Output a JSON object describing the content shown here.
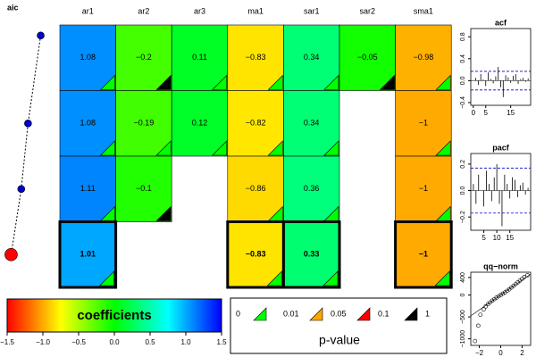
{
  "chart_data": {
    "type": "coefficient-grid",
    "columns": [
      "ar1",
      "ar2",
      "ar3",
      "ma1",
      "sar1",
      "sar2",
      "sma1"
    ],
    "rows": [
      {
        "values": [
          1.08,
          -0.2,
          0.11,
          -0.83,
          0.34,
          -0.05,
          -0.98
        ],
        "value_labels": [
          "1.08",
          "−0.2",
          "0.11",
          "−0.83",
          "0.34",
          "−0.05",
          "−0.98"
        ],
        "triangles": [
          "#00ff00",
          "#000000",
          "#00ff00",
          "#00ff00",
          "#00ff00",
          "#000000",
          "#00ff00"
        ]
      },
      {
        "values": [
          1.08,
          -0.19,
          0.12,
          -0.82,
          0.34,
          null,
          -1
        ],
        "value_labels": [
          "1.08",
          "−0.19",
          "0.12",
          "−0.82",
          "0.34",
          null,
          "−1"
        ],
        "triangles": [
          "#00ff00",
          "#00ff00",
          "#00ff00",
          "#00ff00",
          "#00ff00",
          null,
          "#00ff00"
        ]
      },
      {
        "values": [
          1.11,
          -0.1,
          null,
          -0.86,
          0.36,
          null,
          -1
        ],
        "value_labels": [
          "1.11",
          "−0.1",
          null,
          "−0.86",
          "0.36",
          null,
          "−1"
        ],
        "triangles": [
          "#00ff00",
          "#000000",
          null,
          "#00ff00",
          "#00ff00",
          null,
          "#00ff00"
        ]
      },
      {
        "values": [
          1.01,
          null,
          null,
          -0.83,
          0.33,
          null,
          -1
        ],
        "value_labels": [
          "1.01",
          null,
          null,
          "−0.83",
          "0.33",
          null,
          "−1"
        ],
        "triangles": [
          "#00ff00",
          null,
          null,
          "#00ff00",
          "#00ff00",
          null,
          "#00ff00"
        ]
      }
    ],
    "selected_row": 3,
    "aic": {
      "label": "aic",
      "values": [
        45,
        30,
        22,
        10
      ],
      "xlim": [
        0,
        55
      ],
      "color": "#0000cc",
      "selected_color": "#ff0000"
    },
    "colorbar": {
      "label": "coefficients",
      "lim": [
        -1.5,
        1.5
      ],
      "colors": [
        "#ff0000",
        "#ffff00",
        "#00ff00",
        "#00ffff",
        "#0000ff"
      ],
      "ticks": [
        {
          "value": -1.5,
          "label": "−1.5"
        },
        {
          "value": -1.0,
          "label": "−1.0"
        },
        {
          "value": -0.5,
          "label": "−0.5"
        },
        {
          "value": 0,
          "label": "0.0"
        },
        0.5,
        {
          "value": 1.0,
          "label": "1.0"
        },
        1.5
      ]
    },
    "pvalue_legend": {
      "title": "p-value",
      "breaks": [
        0,
        0.01,
        0.05,
        0.1,
        1
      ],
      "colors": [
        "#00ff00",
        "#ffa500",
        "#ff0000",
        "#000000"
      ]
    },
    "acf": {
      "title": "acf",
      "x": [
        1,
        2,
        3,
        4,
        5,
        6,
        7,
        8,
        9,
        10,
        11,
        12,
        13,
        14,
        15,
        16,
        17,
        18,
        19,
        20,
        21,
        22
      ],
      "values": [
        0.05,
        -0.08,
        0.12,
        0.02,
        -0.1,
        0.15,
        0.03,
        -0.05,
        0.08,
        0.25,
        -0.12,
        -0.3,
        0.1,
        0.06,
        -0.04,
        0.09,
        0.12,
        -0.06,
        0.03,
        0.05,
        -0.02,
        0.04
      ],
      "xlim": [
        -1,
        23
      ],
      "xticks": [
        0,
        5,
        15
      ],
      "ylim": [
        -0.45,
        0.95
      ],
      "yticks": [
        {
          "value": -0.4,
          "label": "−0.4"
        },
        {
          "value": 0,
          "label": "0.0"
        },
        0.4,
        0.8
      ],
      "band": 0.17
    },
    "pacf": {
      "title": "pacf",
      "x": [
        1,
        2,
        3,
        4,
        5,
        6,
        7,
        8,
        9,
        10,
        11,
        12,
        13,
        14,
        15,
        16,
        17,
        18,
        19,
        20,
        21,
        22
      ],
      "values": [
        0.05,
        -0.1,
        0.12,
        0.0,
        -0.12,
        0.15,
        0.05,
        -0.08,
        0.1,
        0.2,
        -0.1,
        -0.27,
        0.12,
        0.05,
        -0.06,
        0.1,
        0.08,
        -0.05,
        0.04,
        0.06,
        -0.03,
        0.02
      ],
      "xlim": [
        0,
        23
      ],
      "xticks": [
        5,
        10,
        15
      ],
      "ylim": [
        -0.3,
        0.28
      ],
      "yticks": [
        {
          "value": -0.2,
          "label": "−0.2"
        },
        {
          "value": 0,
          "label": "0.0"
        },
        0.2
      ],
      "band": 0.17
    },
    "qq": {
      "title": "qq−norm",
      "x": [
        -2.4,
        -2.1,
        -1.9,
        -1.6,
        -1.4,
        -1.2,
        -1.0,
        -0.8,
        -0.6,
        -0.4,
        -0.2,
        0,
        0.2,
        0.4,
        0.6,
        0.8,
        1.0,
        1.2,
        1.4,
        1.6,
        1.8,
        2.0,
        2.2,
        2.5
      ],
      "y": [
        -1050,
        -700,
        -450,
        -330,
        -260,
        -210,
        -170,
        -130,
        -95,
        -60,
        -30,
        0,
        30,
        60,
        95,
        130,
        170,
        210,
        250,
        290,
        330,
        370,
        410,
        450
      ],
      "xlim": [
        -2.8,
        2.8
      ],
      "xticks": [
        {
          "value": -2,
          "label": "−2"
        },
        0,
        2
      ],
      "ylim": [
        -1150,
        520
      ],
      "yticks": [
        {
          "value": -1000,
          "label": "−1000"
        },
        {
          "value": -500,
          "label": "−500"
        },
        0,
        400
      ]
    }
  }
}
